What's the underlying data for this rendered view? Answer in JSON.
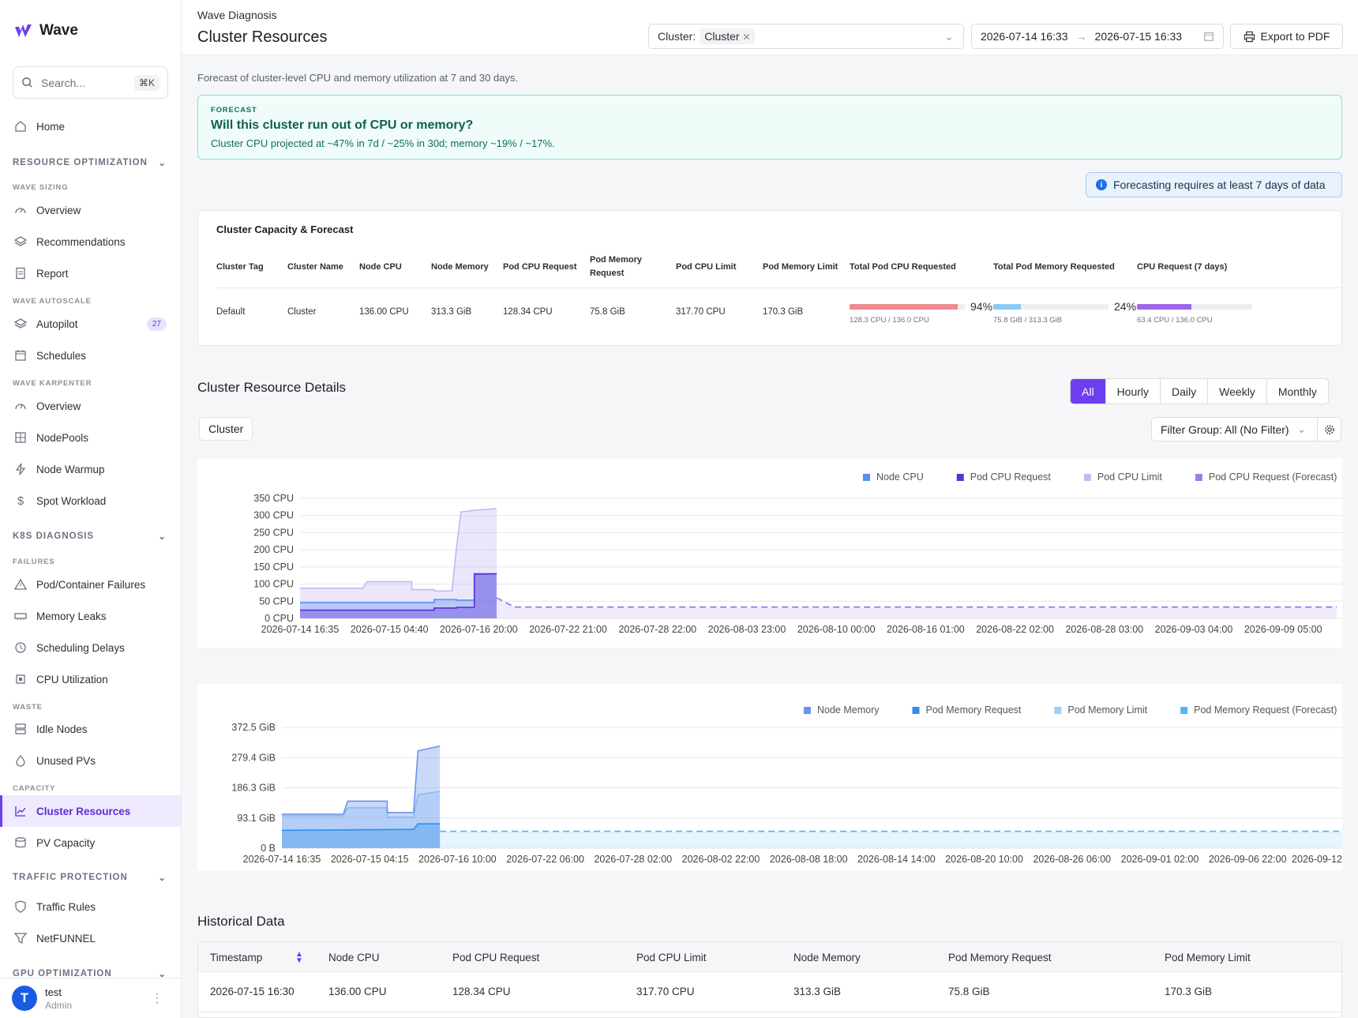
{
  "app": {
    "name": "Wave"
  },
  "search": {
    "placeholder": "Search...",
    "shortcut": "⌘K"
  },
  "nav": {
    "home": "Home",
    "resource_optimization": "RESOURCE OPTIMIZATION",
    "wave_sizing": "WAVE SIZING",
    "overview": "Overview",
    "recommendations": "Recommendations",
    "report": "Report",
    "wave_autoscale": "WAVE AUTOSCALE",
    "autopilot": "Autopilot",
    "autopilot_badge": "27",
    "schedules": "Schedules",
    "wave_karpenter": "WAVE KARPENTER",
    "k_overview": "Overview",
    "nodepools": "NodePools",
    "node_warmup": "Node Warmup",
    "spot_workload": "Spot Workload",
    "k8s_diagnosis": "K8S DIAGNOSIS",
    "failures": "FAILURES",
    "pod_failures": "Pod/Container Failures",
    "memory_leaks": "Memory Leaks",
    "scheduling_delays": "Scheduling Delays",
    "cpu_utilization": "CPU Utilization",
    "waste": "WASTE",
    "idle_nodes": "Idle Nodes",
    "unused_pvs": "Unused PVs",
    "capacity": "CAPACITY",
    "cluster_resources": "Cluster Resources",
    "pv_capacity": "PV Capacity",
    "traffic_protection": "TRAFFIC PROTECTION",
    "traffic_rules": "Traffic Rules",
    "netfunnel": "NetFUNNEL",
    "gpu_optimization": "GPU OPTIMIZATION"
  },
  "user": {
    "initial": "T",
    "name": "test",
    "role": "Admin"
  },
  "header": {
    "breadcrumb": "Wave Diagnosis",
    "title": "Cluster Resources",
    "cluster_label": "Cluster:",
    "cluster_value": "Cluster",
    "date_from": "2026-07-14 16:33",
    "date_to": "2026-07-15 16:33",
    "export": "Export to PDF"
  },
  "description": "Forecast of cluster-level CPU and memory utilization at 7 and 30 days.",
  "forecast": {
    "label": "FORECAST",
    "question": "Will this cluster run out of CPU or memory?",
    "text": "Cluster CPU projected at ~47% in 7d / ~25% in 30d; memory ~19% / ~17%."
  },
  "info": "Forecasting requires at least 7 days of data",
  "capacity": {
    "title": "Cluster Capacity & Forecast",
    "headers": [
      "Cluster Tag",
      "Cluster Name",
      "Node CPU",
      "Node Memory",
      "Pod CPU Request",
      "Pod Memory Request",
      "Pod CPU Limit",
      "Pod Memory Limit",
      "Total Pod CPU Requested",
      "Total Pod Memory Requested",
      "CPU Request (7 days)"
    ],
    "row": [
      "Default",
      "Cluster",
      "136.00 CPU",
      "313.3 GiB",
      "128.34 CPU",
      "75.8 GiB",
      "317.70 CPU",
      "170.3 GiB"
    ],
    "cpu_req": {
      "pct": "94%",
      "fill": 0.94,
      "sub": "128.3 CPU / 136.0 CPU",
      "color": "#ef8a8f"
    },
    "mem_req": {
      "pct": "24%",
      "fill": 0.24,
      "sub": "75.8 GiB / 313.3 GiB",
      "color": "#8cc8f5"
    },
    "cpu7": {
      "fill": 0.47,
      "sub": "63.4 CPU / 136.0 CPU",
      "color": "#a066e8"
    }
  },
  "details": {
    "title": "Cluster Resource Details",
    "periods": [
      "All",
      "Hourly",
      "Daily",
      "Weekly",
      "Monthly"
    ],
    "cluster_btn": "Cluster",
    "filter": "Filter Group: All (No Filter)"
  },
  "chart_data": [
    {
      "type": "area",
      "legend": [
        "Node CPU",
        "Pod CPU Request",
        "Pod CPU Limit",
        "Pod CPU Request (Forecast)"
      ],
      "colors": [
        "#5b8def",
        "#5b2fd6",
        "#c5b6f5",
        "#a27be8"
      ],
      "yticks": [
        "350 CPU",
        "300 CPU",
        "250 CPU",
        "200 CPU",
        "150 CPU",
        "100 CPU",
        "50 CPU",
        "0 CPU"
      ],
      "ylim": [
        0,
        350
      ],
      "xticks": [
        "2026-07-14 16:35",
        "2026-07-15 04:40",
        "2026-07-16 20:00",
        "2026-07-22 21:00",
        "2026-07-28 22:00",
        "2026-08-03 23:00",
        "2026-08-10 00:00",
        "2026-08-16 01:00",
        "2026-08-22 02:00",
        "2026-08-28 03:00",
        "2026-09-03 04:00",
        "2026-09-09 05:00"
      ],
      "series": [
        {
          "name": "Node CPU",
          "points": [
            [
              0,
              46
            ],
            [
              1.5,
              46
            ],
            [
              1.5,
              55
            ],
            [
              1.75,
              55
            ],
            [
              1.75,
              53
            ],
            [
              1.95,
              53
            ],
            [
              1.95,
              128
            ],
            [
              2.2,
              130
            ]
          ]
        },
        {
          "name": "Pod CPU Request",
          "points": [
            [
              0,
              24
            ],
            [
              1.5,
              24
            ],
            [
              1.5,
              30
            ],
            [
              1.75,
              30
            ],
            [
              1.75,
              32
            ],
            [
              1.95,
              32
            ],
            [
              1.95,
              130
            ],
            [
              2.2,
              130
            ]
          ]
        },
        {
          "name": "Pod CPU Limit",
          "points": [
            [
              0,
              88
            ],
            [
              0.5,
              88
            ],
            [
              0.7,
              88
            ],
            [
              0.75,
              107
            ],
            [
              1.25,
              107
            ],
            [
              1.25,
              84
            ],
            [
              1.5,
              84
            ],
            [
              1.5,
              80
            ],
            [
              1.7,
              80
            ],
            [
              1.75,
              205
            ],
            [
              1.8,
              310
            ],
            [
              1.95,
              315
            ],
            [
              2.2,
              320
            ]
          ]
        },
        {
          "name": "Pod CPU Request (Forecast)",
          "points": [
            [
              2.2,
              60
            ],
            [
              2.4,
              33
            ],
            [
              11.6,
              33
            ]
          ]
        }
      ]
    },
    {
      "type": "area",
      "legend": [
        "Node Memory",
        "Pod Memory Request",
        "Pod Memory Limit",
        "Pod Memory Request (Forecast)"
      ],
      "colors": [
        "#6a93ee",
        "#2e8fea",
        "#9bd0fa",
        "#56b5f7"
      ],
      "yticks": [
        "372.5 GiB",
        "279.4 GiB",
        "186.3 GiB",
        "93.1 GiB",
        "0 B"
      ],
      "ylim": [
        0,
        372.5
      ],
      "xticks": [
        "2026-07-14 16:35",
        "2026-07-15 04:15",
        "2026-07-16 10:00",
        "2026-07-22 06:00",
        "2026-07-28 02:00",
        "2026-08-02 22:00",
        "2026-08-08 18:00",
        "2026-08-14 14:00",
        "2026-08-20 10:00",
        "2026-08-26 06:00",
        "2026-09-01 02:00",
        "2026-09-06 22:00",
        "2026-09-12"
      ],
      "series": [
        {
          "name": "Node Memory",
          "points": [
            [
              0,
              105
            ],
            [
              0.7,
              105
            ],
            [
              0.75,
              145
            ],
            [
              1.2,
              145
            ],
            [
              1.2,
              110
            ],
            [
              1.5,
              110
            ],
            [
              1.55,
              300
            ],
            [
              1.8,
              315
            ]
          ]
        },
        {
          "name": "Pod Memory Request",
          "points": [
            [
              0,
              55
            ],
            [
              1.5,
              58
            ],
            [
              1.55,
              75
            ],
            [
              1.8,
              75
            ]
          ]
        },
        {
          "name": "Pod Memory Limit",
          "points": [
            [
              0,
              100
            ],
            [
              0.7,
              100
            ],
            [
              0.75,
              125
            ],
            [
              1.2,
              125
            ],
            [
              1.2,
              96
            ],
            [
              1.5,
              96
            ],
            [
              1.55,
              165
            ],
            [
              1.8,
              175
            ]
          ]
        },
        {
          "name": "Pod Memory Request (Forecast)",
          "points": [
            [
              1.8,
              52
            ],
            [
              12.2,
              52
            ]
          ]
        }
      ]
    }
  ],
  "history": {
    "title": "Historical Data",
    "headers": [
      "Timestamp",
      "Node CPU",
      "Pod CPU Request",
      "Pod CPU Limit",
      "Node Memory",
      "Pod Memory Request",
      "Pod Memory Limit"
    ],
    "rows": [
      [
        "2026-07-15 16:30",
        "136.00 CPU",
        "128.34 CPU",
        "317.70 CPU",
        "313.3 GiB",
        "75.8 GiB",
        "170.3 GiB"
      ]
    ]
  }
}
